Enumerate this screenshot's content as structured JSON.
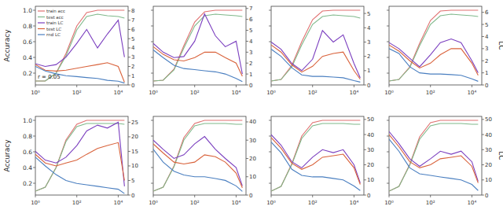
{
  "chart_data": [
    {
      "type": "line",
      "log": "x",
      "legend": "upper left",
      "annotation": "r = 0.05",
      "y_label": "Accuracy",
      "x": [
        1,
        3,
        10,
        30,
        100,
        300,
        1000,
        3000,
        10000,
        20000
      ],
      "xlim": [
        1,
        30000
      ],
      "xticks": [
        {
          "value": 1,
          "label": "10⁰"
        },
        {
          "value": 100,
          "label": "10²"
        },
        {
          "value": 10000,
          "label": "10⁴"
        }
      ],
      "ylim": [
        0.05,
        1.05
      ],
      "yticks": [
        0.2,
        0.4,
        0.6,
        0.8,
        {
          "value": 1.0,
          "label": "1.0"
        }
      ],
      "y2lim": [
        0,
        8.5
      ],
      "y2ticks": [
        0,
        1,
        2,
        3,
        4,
        5,
        6,
        7,
        8
      ],
      "series": [
        {
          "name": "train acc",
          "color": "#e07070",
          "values": [
            0.1,
            0.1,
            0.2,
            0.45,
            0.8,
            0.97,
            1.0,
            1.0,
            1.0,
            1.0
          ]
        },
        {
          "name": "test acc",
          "color": "#7fb88a",
          "values": [
            0.1,
            0.1,
            0.2,
            0.42,
            0.75,
            0.92,
            0.95,
            0.93,
            0.92,
            0.9
          ]
        },
        {
          "name": "train LC",
          "color": "#7b3fbf",
          "axis": "y2",
          "values": [
            2.3,
            2.0,
            2.2,
            3.0,
            4.5,
            6.0,
            4.0,
            5.5,
            7.0,
            3.0
          ]
        },
        {
          "name": "test LC",
          "color": "#d9623b",
          "axis": "y2",
          "values": [
            2.2,
            1.6,
            1.5,
            1.6,
            1.8,
            2.0,
            2.2,
            2.4,
            2.0,
            0.3
          ]
        },
        {
          "name": "rnd LC",
          "color": "#4a7fc0",
          "axis": "y2",
          "values": [
            2.0,
            1.5,
            1.2,
            1.0,
            0.9,
            0.8,
            0.7,
            0.5,
            0.4,
            0.2
          ]
        }
      ]
    },
    {
      "type": "line",
      "log": "x",
      "x": [
        1,
        3,
        10,
        30,
        100,
        300,
        1000,
        3000,
        10000,
        20000
      ],
      "xlim": [
        1,
        30000
      ],
      "xticks": [
        {
          "value": 1,
          "label": "10⁰"
        },
        {
          "value": 100,
          "label": "10²"
        },
        {
          "value": 10000,
          "label": "10⁴"
        }
      ],
      "ylim": [
        0.05,
        1.05
      ],
      "yticks": [
        0.2,
        0.4,
        0.6,
        0.8,
        {
          "value": 1.0,
          "label": "1.0"
        }
      ],
      "y2lim": [
        0,
        7.2
      ],
      "y2ticks": [
        0,
        1,
        2,
        3,
        4,
        5,
        6,
        7
      ],
      "series": [
        {
          "color": "#e07070",
          "values": [
            0.1,
            0.11,
            0.25,
            0.55,
            0.85,
            0.98,
            1.0,
            1.0,
            1.0,
            1.0
          ]
        },
        {
          "color": "#7fb88a",
          "values": [
            0.1,
            0.11,
            0.24,
            0.52,
            0.8,
            0.93,
            0.95,
            0.94,
            0.93,
            0.92
          ]
        },
        {
          "color": "#7b3fbf",
          "axis": "y2",
          "values": [
            3.8,
            3.0,
            2.5,
            2.6,
            4.0,
            6.5,
            4.5,
            3.5,
            4.0,
            1.0
          ]
        },
        {
          "color": "#d9623b",
          "axis": "y2",
          "values": [
            3.5,
            2.8,
            2.3,
            2.2,
            2.5,
            3.0,
            3.0,
            2.5,
            2.0,
            0.8
          ]
        },
        {
          "color": "#4a7fc0",
          "axis": "y2",
          "values": [
            3.2,
            2.5,
            1.8,
            1.5,
            1.4,
            1.3,
            1.2,
            1.0,
            0.6,
            0.3
          ]
        }
      ]
    },
    {
      "type": "line",
      "log": "x",
      "x": [
        1,
        3,
        10,
        30,
        100,
        300,
        1000,
        3000,
        10000,
        20000
      ],
      "xlim": [
        1,
        30000
      ],
      "xticks": [
        {
          "value": 1,
          "label": "10⁰"
        },
        {
          "value": 100,
          "label": "10²"
        },
        {
          "value": 10000,
          "label": "10⁴"
        }
      ],
      "ylim": [
        0.05,
        1.05
      ],
      "yticks": [
        0.2,
        0.4,
        0.6,
        0.8,
        {
          "value": 1.0,
          "label": "1.0"
        }
      ],
      "y2lim": [
        0,
        5.5
      ],
      "y2ticks": [
        0,
        1,
        2,
        3,
        4,
        5
      ],
      "series": [
        {
          "color": "#e07070",
          "values": [
            0.1,
            0.12,
            0.3,
            0.6,
            0.88,
            0.99,
            1.0,
            1.0,
            1.0,
            1.0
          ]
        },
        {
          "color": "#7fb88a",
          "values": [
            0.1,
            0.12,
            0.28,
            0.56,
            0.82,
            0.92,
            0.94,
            0.93,
            0.92,
            0.9
          ]
        },
        {
          "color": "#7b3fbf",
          "axis": "y2",
          "values": [
            3.0,
            2.5,
            1.5,
            1.0,
            1.8,
            3.8,
            3.0,
            3.5,
            1.5,
            0.5
          ]
        },
        {
          "color": "#d9623b",
          "axis": "y2",
          "values": [
            2.8,
            2.3,
            1.4,
            0.9,
            1.3,
            2.0,
            2.2,
            2.3,
            1.0,
            0.4
          ]
        },
        {
          "color": "#4a7fc0",
          "axis": "y2",
          "values": [
            2.5,
            2.0,
            1.2,
            0.7,
            0.6,
            0.6,
            0.55,
            0.5,
            0.3,
            0.2
          ]
        }
      ]
    },
    {
      "type": "line",
      "log": "x",
      "y2_label": "LC",
      "x": [
        1,
        3,
        10,
        30,
        100,
        300,
        1000,
        3000,
        10000,
        20000
      ],
      "xlim": [
        1,
        30000
      ],
      "xticks": [
        {
          "value": 1,
          "label": "10⁰"
        },
        {
          "value": 100,
          "label": "10²"
        },
        {
          "value": 10000,
          "label": "10⁴"
        }
      ],
      "ylim": [
        0.05,
        1.05
      ],
      "yticks": [
        0.2,
        0.4,
        0.6,
        0.8,
        {
          "value": 1.0,
          "label": "1.0"
        }
      ],
      "y2lim": [
        0,
        6.5
      ],
      "y2ticks": [
        0,
        1,
        2,
        3,
        4,
        5,
        6
      ],
      "series": [
        {
          "color": "#e07070",
          "values": [
            0.1,
            0.12,
            0.28,
            0.58,
            0.87,
            0.99,
            1.0,
            1.0,
            1.0,
            1.0
          ]
        },
        {
          "color": "#7fb88a",
          "values": [
            0.1,
            0.12,
            0.27,
            0.55,
            0.82,
            0.93,
            0.95,
            0.94,
            0.93,
            0.92
          ]
        },
        {
          "color": "#7b3fbf",
          "axis": "y2",
          "values": [
            3.5,
            3.0,
            2.2,
            1.5,
            2.5,
            3.5,
            3.8,
            3.5,
            2.0,
            1.0
          ]
        },
        {
          "color": "#d9623b",
          "axis": "y2",
          "values": [
            3.3,
            2.8,
            2.0,
            1.4,
            1.8,
            2.5,
            3.0,
            3.0,
            1.8,
            0.8
          ]
        },
        {
          "color": "#4a7fc0",
          "axis": "y2",
          "values": [
            3.0,
            2.6,
            1.5,
            1.0,
            0.9,
            0.9,
            0.85,
            0.8,
            0.5,
            0.3
          ]
        }
      ]
    },
    {
      "type": "line",
      "log": "x",
      "y_label": "Accuracy",
      "x": [
        1,
        3,
        10,
        30,
        100,
        300,
        1000,
        3000,
        10000,
        20000
      ],
      "xlim": [
        1,
        30000
      ],
      "xticks": [
        {
          "value": 1,
          "label": "10⁰"
        },
        {
          "value": 100,
          "label": "10²"
        },
        {
          "value": 10000,
          "label": "10⁴"
        }
      ],
      "ylim": [
        0.05,
        1.05
      ],
      "yticks": [
        0.2,
        0.4,
        0.6,
        0.8,
        {
          "value": 1.0,
          "label": "1.0"
        }
      ],
      "y2lim": [
        0,
        27
      ],
      "y2ticks": [
        0,
        5,
        10,
        15,
        20,
        25
      ],
      "series": [
        {
          "color": "#e07070",
          "values": [
            0.1,
            0.15,
            0.4,
            0.75,
            0.95,
            1.0,
            1.0,
            1.0,
            1.0,
            1.0
          ]
        },
        {
          "color": "#7fb88a",
          "values": [
            0.1,
            0.15,
            0.4,
            0.73,
            0.92,
            0.96,
            0.96,
            0.96,
            0.96,
            0.95
          ]
        },
        {
          "color": "#7b3fbf",
          "axis": "y2",
          "values": [
            15,
            12,
            11,
            13,
            17,
            22,
            24,
            23,
            25,
            3
          ]
        },
        {
          "color": "#d9623b",
          "axis": "y2",
          "values": [
            14,
            11,
            10,
            11,
            12,
            14,
            16,
            17,
            18,
            5
          ]
        },
        {
          "color": "#4a7fc0",
          "axis": "y2",
          "values": [
            13,
            10,
            7,
            5,
            4,
            3.5,
            3,
            2.5,
            2,
            0.5
          ]
        }
      ]
    },
    {
      "type": "line",
      "log": "x",
      "x": [
        1,
        3,
        10,
        30,
        100,
        300,
        1000,
        3000,
        10000,
        20000
      ],
      "xlim": [
        1,
        30000
      ],
      "xticks": [
        {
          "value": 1,
          "label": "10⁰"
        },
        {
          "value": 100,
          "label": "10²"
        },
        {
          "value": 10000,
          "label": "10⁴"
        }
      ],
      "ylim": [
        0.05,
        1.05
      ],
      "yticks": [
        0.2,
        0.4,
        0.6,
        0.8,
        {
          "value": 1.0,
          "label": "1.0"
        }
      ],
      "y2lim": [
        0,
        43
      ],
      "y2ticks": [
        0,
        10,
        20,
        30,
        40
      ],
      "series": [
        {
          "color": "#e07070",
          "values": [
            0.1,
            0.15,
            0.42,
            0.78,
            0.96,
            1.0,
            1.0,
            1.0,
            1.0,
            1.0
          ]
        },
        {
          "color": "#7fb88a",
          "values": [
            0.1,
            0.15,
            0.41,
            0.75,
            0.93,
            0.96,
            0.96,
            0.96,
            0.95,
            0.95
          ]
        },
        {
          "color": "#7b3fbf",
          "axis": "y2",
          "values": [
            30,
            25,
            20,
            22,
            28,
            32,
            25,
            20,
            15,
            5
          ]
        },
        {
          "color": "#d9623b",
          "axis": "y2",
          "values": [
            28,
            23,
            18,
            17,
            18,
            22,
            21,
            18,
            12,
            4
          ]
        },
        {
          "color": "#4a7fc0",
          "axis": "y2",
          "values": [
            25,
            18,
            13,
            11,
            10,
            10,
            9,
            8,
            5,
            2
          ]
        }
      ]
    },
    {
      "type": "line",
      "log": "x",
      "x": [
        1,
        3,
        10,
        30,
        100,
        300,
        1000,
        3000,
        10000,
        20000
      ],
      "xlim": [
        1,
        30000
      ],
      "xticks": [
        {
          "value": 1,
          "label": "10⁰"
        },
        {
          "value": 100,
          "label": "10²"
        },
        {
          "value": 10000,
          "label": "10⁴"
        }
      ],
      "ylim": [
        0.05,
        1.05
      ],
      "yticks": [
        0.2,
        0.4,
        0.6,
        0.8,
        {
          "value": 1.0,
          "label": "1.0"
        }
      ],
      "y2lim": [
        0,
        52
      ],
      "y2ticks": [
        0,
        10,
        20,
        30,
        40,
        50
      ],
      "series": [
        {
          "color": "#e07070",
          "values": [
            0.1,
            0.16,
            0.45,
            0.8,
            0.97,
            1.0,
            1.0,
            1.0,
            1.0,
            1.0
          ]
        },
        {
          "color": "#7fb88a",
          "values": [
            0.1,
            0.16,
            0.44,
            0.77,
            0.93,
            0.96,
            0.96,
            0.96,
            0.95,
            0.95
          ]
        },
        {
          "color": "#7b3fbf",
          "axis": "y2",
          "values": [
            40,
            33,
            22,
            18,
            25,
            30,
            28,
            30,
            20,
            8
          ]
        },
        {
          "color": "#d9623b",
          "axis": "y2",
          "values": [
            38,
            31,
            21,
            17,
            20,
            25,
            26,
            27,
            18,
            7
          ]
        },
        {
          "color": "#4a7fc0",
          "axis": "y2",
          "values": [
            35,
            28,
            17,
            13,
            12,
            12,
            11,
            10,
            6,
            3
          ]
        }
      ]
    },
    {
      "type": "line",
      "log": "x",
      "y2_label": "LC",
      "x": [
        1,
        3,
        10,
        30,
        100,
        300,
        1000,
        3000,
        10000,
        20000
      ],
      "xlim": [
        1,
        30000
      ],
      "xticks": [
        {
          "value": 1,
          "label": "10⁰"
        },
        {
          "value": 100,
          "label": "10²"
        },
        {
          "value": 10000,
          "label": "10⁴"
        }
      ],
      "ylim": [
        0.05,
        1.05
      ],
      "yticks": [
        0.2,
        0.4,
        0.6,
        0.8,
        {
          "value": 1.0,
          "label": "1.0"
        }
      ],
      "y2lim": [
        0,
        52
      ],
      "y2ticks": [
        0,
        10,
        20,
        30,
        40,
        50
      ],
      "series": [
        {
          "color": "#e07070",
          "values": [
            0.1,
            0.16,
            0.44,
            0.79,
            0.97,
            1.0,
            1.0,
            1.0,
            1.0,
            1.0
          ]
        },
        {
          "color": "#7fb88a",
          "values": [
            0.1,
            0.16,
            0.43,
            0.76,
            0.93,
            0.96,
            0.96,
            0.96,
            0.95,
            0.95
          ]
        },
        {
          "color": "#7b3fbf",
          "axis": "y2",
          "values": [
            42,
            34,
            24,
            19,
            24,
            29,
            27,
            29,
            22,
            9
          ]
        },
        {
          "color": "#d9623b",
          "axis": "y2",
          "values": [
            40,
            32,
            22,
            18,
            20,
            24,
            25,
            26,
            19,
            8
          ]
        },
        {
          "color": "#4a7fc0",
          "axis": "y2",
          "values": [
            37,
            29,
            18,
            14,
            13,
            12,
            11,
            10,
            7,
            3
          ]
        }
      ]
    }
  ]
}
